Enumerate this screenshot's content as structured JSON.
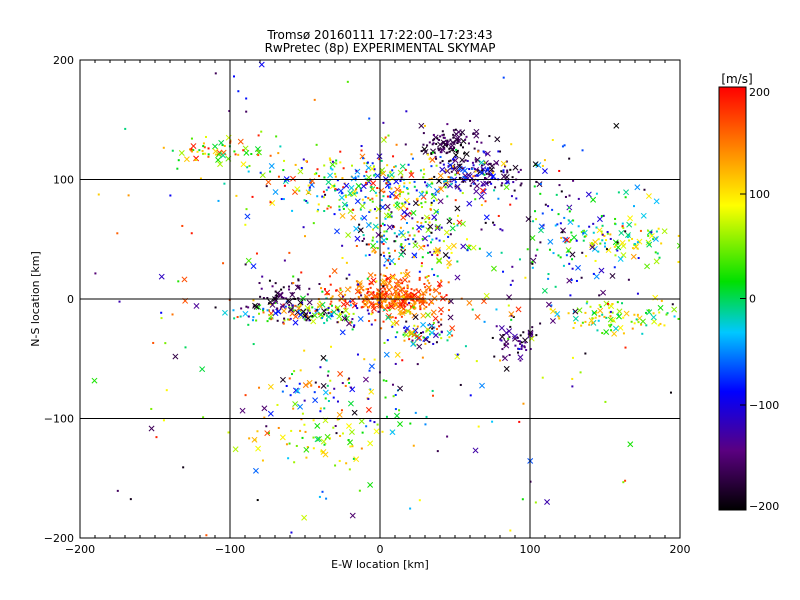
{
  "chart_data": {
    "type": "scatter",
    "title": "Tromsø 20160111 17:22:00–17:23:43",
    "subtitle": "RwPretec (8p) EXPERIMENTAL SKYMAP",
    "xlabel": "E-W location [km]",
    "ylabel": "N-S location [km]",
    "xlim": [
      -200,
      200
    ],
    "ylim": [
      -200,
      200
    ],
    "xticks": [
      -200,
      -100,
      0,
      100,
      200
    ],
    "yticks": [
      -200,
      -100,
      0,
      100,
      200
    ],
    "xtick_labels": [
      "−200",
      "−100",
      "0",
      "100",
      "200"
    ],
    "ytick_labels": [
      "−200",
      "−100",
      "0",
      "100",
      "200"
    ],
    "grid": true,
    "colorbar": {
      "label": "[m/s]",
      "range": [
        -200,
        200
      ],
      "ticks": [
        200,
        100,
        0,
        -100,
        -200
      ],
      "tick_labels": [
        "200",
        "100",
        "0",
        "−100",
        "−200"
      ],
      "colormap": [
        "#000000",
        "#5a0080",
        "#0000ff",
        "#00c8ff",
        "#00e000",
        "#ffff00",
        "#ff8000",
        "#ff0000"
      ]
    },
    "markers": [
      "x (large echoes)",
      "· (small echoes)"
    ],
    "clusters": [
      {
        "cx": 10,
        "cy": 2,
        "sx": 18,
        "sy": 8,
        "n": 360,
        "vmin": 120,
        "vmax": 200
      },
      {
        "cx": -45,
        "cy": -12,
        "sx": 28,
        "sy": 6,
        "n": 160,
        "vmin": -200,
        "vmax": 180
      },
      {
        "cx": -65,
        "cy": 0,
        "sx": 12,
        "sy": 8,
        "n": 60,
        "vmin": -200,
        "vmax": -140
      },
      {
        "cx": 30,
        "cy": -28,
        "sx": 10,
        "sy": 6,
        "n": 70,
        "vmin": -200,
        "vmax": 200
      },
      {
        "cx": 90,
        "cy": -35,
        "sx": 8,
        "sy": 8,
        "n": 50,
        "vmin": -200,
        "vmax": -120
      },
      {
        "cx": 45,
        "cy": 130,
        "sx": 12,
        "sy": 7,
        "n": 110,
        "vmin": -200,
        "vmax": -140
      },
      {
        "cx": 65,
        "cy": 105,
        "sx": 14,
        "sy": 8,
        "n": 140,
        "vmin": -200,
        "vmax": -60
      },
      {
        "cx": 0,
        "cy": 95,
        "sx": 40,
        "sy": 14,
        "n": 320,
        "vmin": -120,
        "vmax": 200
      },
      {
        "cx": 20,
        "cy": 50,
        "sx": 25,
        "sy": 20,
        "n": 200,
        "vmin": -200,
        "vmax": 200
      },
      {
        "cx": 165,
        "cy": 50,
        "sx": 20,
        "sy": 8,
        "n": 90,
        "vmin": -40,
        "vmax": 120
      },
      {
        "cx": 160,
        "cy": -15,
        "sx": 25,
        "sy": 8,
        "n": 100,
        "vmin": -40,
        "vmax": 140
      },
      {
        "cx": -110,
        "cy": 125,
        "sx": 20,
        "sy": 6,
        "n": 60,
        "vmin": 0,
        "vmax": 200
      },
      {
        "cx": -30,
        "cy": -120,
        "sx": 25,
        "sy": 12,
        "n": 60,
        "vmin": 0,
        "vmax": 140
      },
      {
        "cx": -30,
        "cy": -75,
        "sx": 30,
        "sy": 15,
        "n": 80,
        "vmin": -200,
        "vmax": 200
      },
      {
        "cx": 130,
        "cy": 55,
        "sx": 25,
        "sy": 30,
        "n": 120,
        "vmin": -200,
        "vmax": 40
      },
      {
        "cx": 0,
        "cy": 0,
        "sx": 110,
        "sy": 100,
        "n": 300,
        "vmin": -200,
        "vmax": 200
      }
    ]
  }
}
